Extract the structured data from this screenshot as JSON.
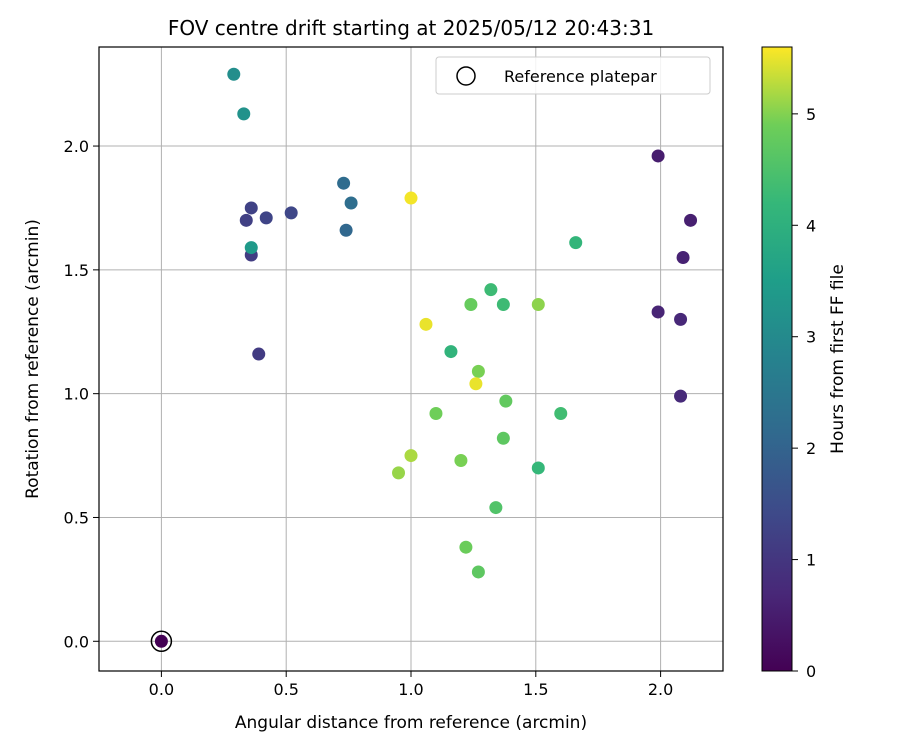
{
  "chart_data": {
    "type": "scatter",
    "title": "FOV centre drift starting at 2025/05/12 20:43:31",
    "xlabel": "Angular distance from reference (arcmin)",
    "ylabel": "Rotation from reference (arcmin)",
    "xlim": [
      -0.25,
      2.25
    ],
    "ylim": [
      -0.12,
      2.4
    ],
    "xticks": [
      0.0,
      0.5,
      1.0,
      1.5,
      2.0
    ],
    "xtick_labels": [
      "0.0",
      "0.5",
      "1.0",
      "1.5",
      "2.0"
    ],
    "yticks": [
      0.0,
      0.5,
      1.0,
      1.5,
      2.0
    ],
    "ytick_labels": [
      "0.0",
      "0.5",
      "1.0",
      "1.5",
      "2.0"
    ],
    "grid": true,
    "legend": {
      "placement": "top-right",
      "entries": [
        "Reference platepar"
      ]
    },
    "colorbar": {
      "label": "Hours from first FF file",
      "colormap": "viridis",
      "range": [
        0,
        5.6
      ],
      "ticks": [
        0,
        1,
        2,
        3,
        4,
        5
      ],
      "tick_labels": [
        "0",
        "1",
        "2",
        "3",
        "4",
        "5"
      ]
    },
    "reference_point": {
      "x": 0.0,
      "y": 0.0
    },
    "points": [
      {
        "x": 0.0,
        "y": 0.0,
        "hours": 0.0
      },
      {
        "x": 1.99,
        "y": 1.96,
        "hours": 0.5
      },
      {
        "x": 2.12,
        "y": 1.7,
        "hours": 0.55
      },
      {
        "x": 2.09,
        "y": 1.55,
        "hours": 0.6
      },
      {
        "x": 1.99,
        "y": 1.33,
        "hours": 0.65
      },
      {
        "x": 2.08,
        "y": 1.3,
        "hours": 0.7
      },
      {
        "x": 2.08,
        "y": 0.99,
        "hours": 0.75
      },
      {
        "x": 0.39,
        "y": 1.16,
        "hours": 1.1
      },
      {
        "x": 0.36,
        "y": 1.56,
        "hours": 1.15
      },
      {
        "x": 0.34,
        "y": 1.7,
        "hours": 1.2
      },
      {
        "x": 0.36,
        "y": 1.75,
        "hours": 1.25
      },
      {
        "x": 0.42,
        "y": 1.71,
        "hours": 1.3
      },
      {
        "x": 0.52,
        "y": 1.73,
        "hours": 1.35
      },
      {
        "x": 0.74,
        "y": 1.66,
        "hours": 2.1
      },
      {
        "x": 0.73,
        "y": 1.85,
        "hours": 2.2
      },
      {
        "x": 0.76,
        "y": 1.77,
        "hours": 2.25
      },
      {
        "x": 0.29,
        "y": 2.29,
        "hours": 3.1
      },
      {
        "x": 0.33,
        "y": 2.13,
        "hours": 3.2
      },
      {
        "x": 0.36,
        "y": 1.59,
        "hours": 3.4
      },
      {
        "x": 1.16,
        "y": 1.17,
        "hours": 4.1
      },
      {
        "x": 1.66,
        "y": 1.61,
        "hours": 4.15
      },
      {
        "x": 1.51,
        "y": 0.7,
        "hours": 4.2
      },
      {
        "x": 1.6,
        "y": 0.92,
        "hours": 4.35
      },
      {
        "x": 1.32,
        "y": 1.42,
        "hours": 4.3
      },
      {
        "x": 1.37,
        "y": 1.36,
        "hours": 4.3
      },
      {
        "x": 1.24,
        "y": 1.36,
        "hours": 4.8
      },
      {
        "x": 1.34,
        "y": 0.54,
        "hours": 4.55
      },
      {
        "x": 1.37,
        "y": 0.82,
        "hours": 4.7
      },
      {
        "x": 1.38,
        "y": 0.97,
        "hours": 4.75
      },
      {
        "x": 1.27,
        "y": 0.28,
        "hours": 4.7
      },
      {
        "x": 1.22,
        "y": 0.38,
        "hours": 4.85
      },
      {
        "x": 1.27,
        "y": 1.09,
        "hours": 4.95
      },
      {
        "x": 1.1,
        "y": 0.92,
        "hours": 4.9
      },
      {
        "x": 1.2,
        "y": 0.73,
        "hours": 4.95
      },
      {
        "x": 1.51,
        "y": 1.36,
        "hours": 5.05
      },
      {
        "x": 0.95,
        "y": 0.68,
        "hours": 5.1
      },
      {
        "x": 1.0,
        "y": 0.75,
        "hours": 5.2
      },
      {
        "x": 1.26,
        "y": 1.04,
        "hours": 5.5
      },
      {
        "x": 1.06,
        "y": 1.28,
        "hours": 5.5
      },
      {
        "x": 1.0,
        "y": 1.79,
        "hours": 5.55
      }
    ]
  }
}
